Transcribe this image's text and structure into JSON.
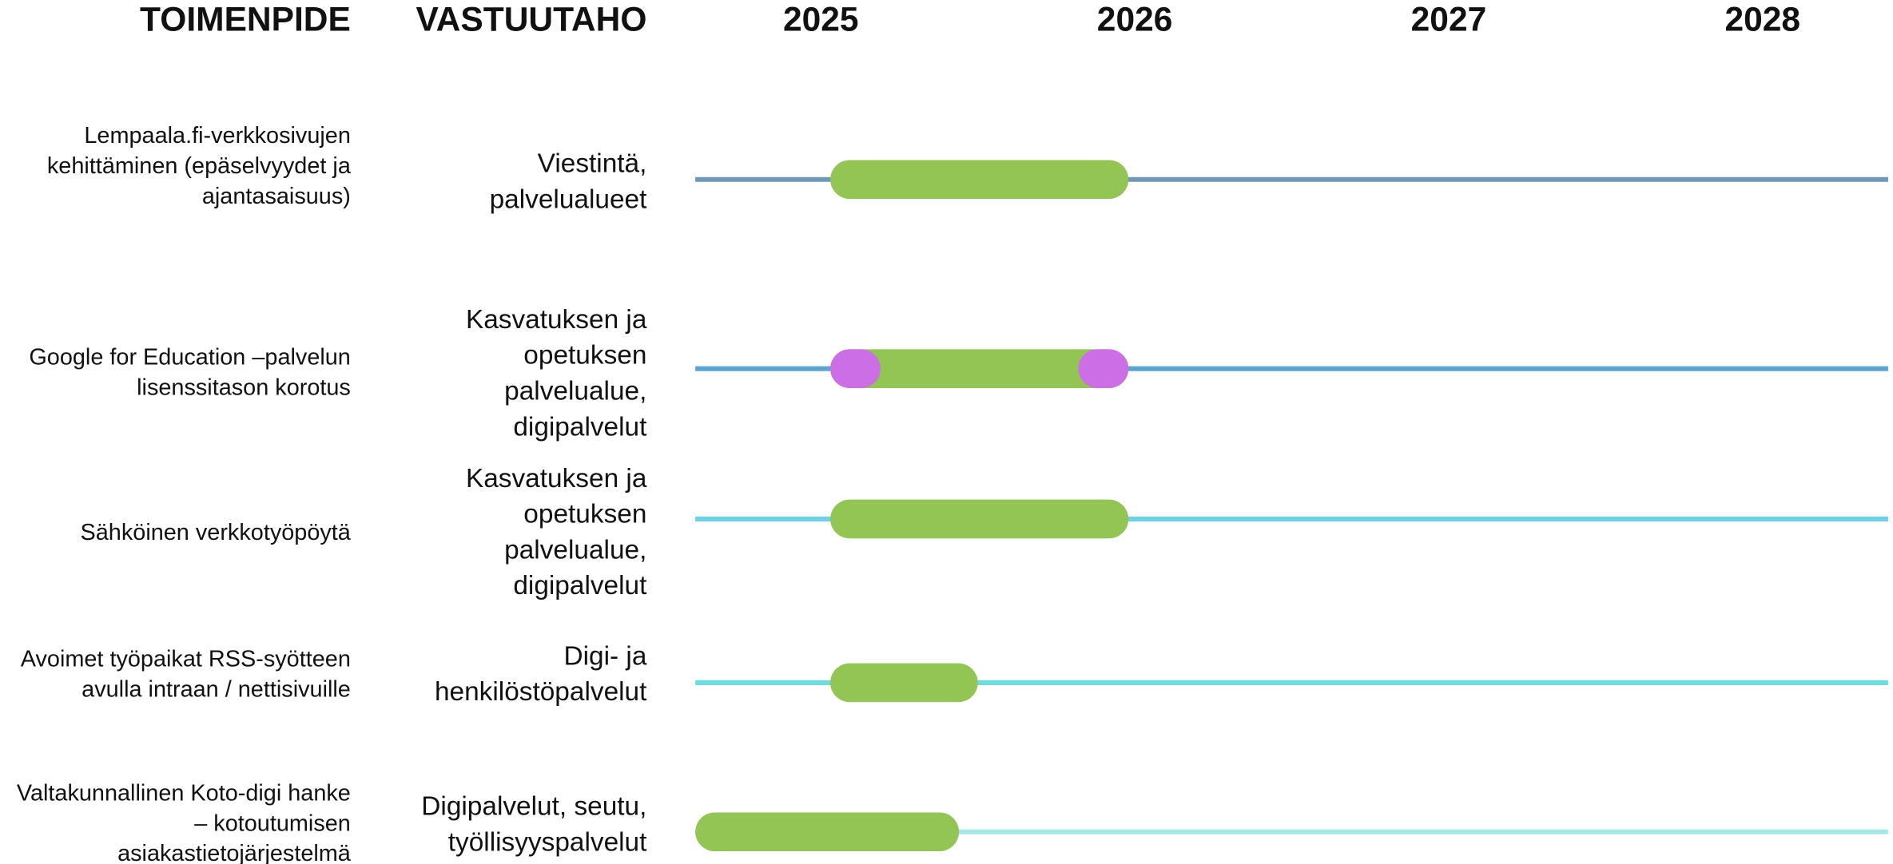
{
  "header": {
    "action": "TOIMENPIDE",
    "responsible": "VASTUUTAHO"
  },
  "timeline": {
    "xlim": [
      2024.6,
      2028.4
    ],
    "xticks": [
      2025,
      2026,
      2027,
      2028
    ]
  },
  "rows": [
    {
      "action": [
        "Lempaala.fi-verkkosivujen",
        "kehittäminen (epäselvyydet ja",
        "ajantasaisuus)"
      ],
      "responsible": [
        "Viestintä,",
        "palvelualueet"
      ],
      "line_color": "#7197b8",
      "bars": [
        {
          "start": 2025.03,
          "end": 2025.98,
          "color": "#92c553"
        }
      ]
    },
    {
      "action": [
        "Google for Education –palvelun",
        "lisenssitason korotus"
      ],
      "responsible": [
        "Kasvatuksen ja",
        "opetuksen",
        "palvelualue,",
        "digipalvelut"
      ],
      "line_color": "#5aa5d6",
      "bars": [
        {
          "start": 2025.03,
          "end": 2025.98,
          "color": "#92c553"
        },
        {
          "start": 2025.03,
          "end": 2025.19,
          "color": "#cc6ee6"
        },
        {
          "start": 2025.82,
          "end": 2025.98,
          "color": "#cc6ee6"
        }
      ]
    },
    {
      "action": [
        "Sähköinen verkkotyöpöytä"
      ],
      "responsible": [
        "Kasvatuksen ja",
        "opetuksen",
        "palvelualue,",
        "digipalvelut"
      ],
      "line_color": "#6cd0e8",
      "bars": [
        {
          "start": 2025.03,
          "end": 2025.98,
          "color": "#92c553"
        }
      ]
    },
    {
      "action": [
        "Avoimet työpaikat RSS-syötteen",
        "avulla intraan / nettisivuille"
      ],
      "responsible": [
        "Digi- ja",
        "henkilöstöpalvelut"
      ],
      "line_color": "#6ddde0",
      "bars": [
        {
          "start": 2025.03,
          "end": 2025.5,
          "color": "#92c553"
        }
      ]
    },
    {
      "action": [
        "Valtakunnallinen Koto-digi hanke",
        "– kotoutumisen",
        "asiakastietojärjestelmä"
      ],
      "responsible": [
        "Digipalvelut, seutu,",
        "työllisyyspalvelut"
      ],
      "line_color": "#a3e8ea",
      "bars": [
        {
          "start": 2024.6,
          "end": 2025.44,
          "color": "#92c553"
        }
      ]
    }
  ]
}
